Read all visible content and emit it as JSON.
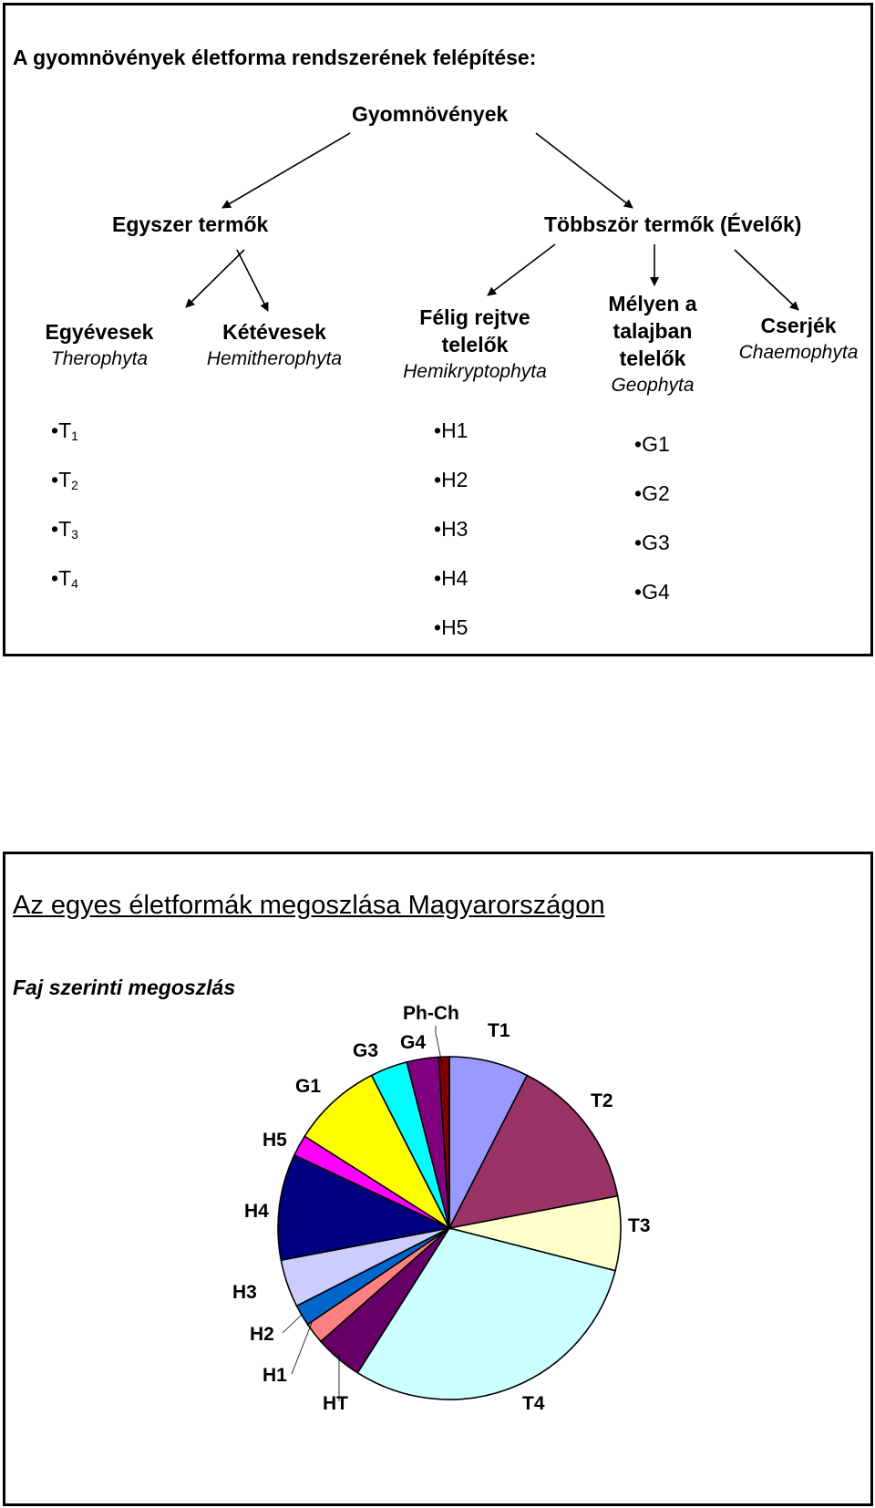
{
  "diagram": {
    "title": "A gyomnövények életforma rendszerének felépítése:",
    "root": "Gyomnövények",
    "annual_group": "Egyszer termők",
    "perennial_group": "Többször termők (Évelők)",
    "categories": [
      {
        "name_lines": [
          "Egyévesek"
        ],
        "latin": "Therophyta"
      },
      {
        "name_lines": [
          "Kétévesek"
        ],
        "latin": "Hemitherophyta"
      },
      {
        "name_lines": [
          "Félig rejtve",
          "telelők"
        ],
        "latin": "Hemikryptophyta"
      },
      {
        "name_lines": [
          "Mélyen a",
          "talajban",
          "telelők"
        ],
        "latin": "Geophyta"
      },
      {
        "name_lines": [
          "Cserjék"
        ],
        "latin": "Chaemophyta"
      }
    ],
    "bullet": "•",
    "t_items": [
      {
        "base": "T",
        "sub": "1"
      },
      {
        "base": "T",
        "sub": "2"
      },
      {
        "base": "T",
        "sub": "3"
      },
      {
        "base": "T",
        "sub": "4"
      }
    ],
    "h_items": [
      "H1",
      "H2",
      "H3",
      "H4",
      "H5"
    ],
    "g_items": [
      "G1",
      "G2",
      "G3",
      "G4"
    ]
  },
  "chart_section": {
    "title": "Az egyes életformák megoszlása Magyarországon",
    "subtitle": "Faj szerinti megoszlás"
  },
  "chart_data": {
    "type": "pie",
    "start_angle_deg": 0,
    "direction": "clockwise",
    "slices": [
      {
        "label": "T1",
        "value": 7.5,
        "color": "#9999ff"
      },
      {
        "label": "T2",
        "value": 14.5,
        "color": "#993366"
      },
      {
        "label": "T3",
        "value": 7.0,
        "color": "#ffffcc"
      },
      {
        "label": "T4",
        "value": 30.0,
        "color": "#ccffff"
      },
      {
        "label": "HT",
        "value": 4.5,
        "color": "#660066"
      },
      {
        "label": "H1",
        "value": 2.0,
        "color": "#ff8080"
      },
      {
        "label": "H2",
        "value": 2.0,
        "color": "#0066cc"
      },
      {
        "label": "H3",
        "value": 4.5,
        "color": "#ccccff"
      },
      {
        "label": "H4",
        "value": 10.0,
        "color": "#000080"
      },
      {
        "label": "H5",
        "value": 2.0,
        "color": "#ff00ff"
      },
      {
        "label": "G1",
        "value": 8.5,
        "color": "#ffff00"
      },
      {
        "label": "G3",
        "value": 3.5,
        "color": "#00ffff"
      },
      {
        "label": "G4",
        "value": 3.0,
        "color": "#800080"
      },
      {
        "label": "Ph-Ch",
        "value": 1.0,
        "color": "#800000"
      }
    ],
    "legend": "none"
  }
}
